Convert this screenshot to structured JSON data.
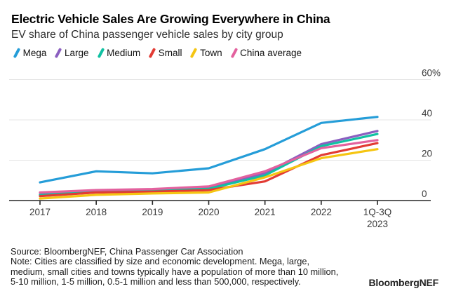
{
  "header": {
    "title": "Electric Vehicle Sales Are Growing Everywhere in China",
    "subtitle": "EV share of China passenger vehicle sales by city group"
  },
  "chart_data": {
    "type": "line",
    "unit": "%",
    "categories": [
      "2017",
      "2018",
      "2019",
      "2020",
      "2021",
      "2022",
      "1Q-3Q\n2023"
    ],
    "series": [
      {
        "name": "Mega",
        "color": "#259dd8",
        "values": [
          9,
          14.5,
          13.5,
          16,
          25.5,
          38.5,
          41.5
        ]
      },
      {
        "name": "Large",
        "color": "#8b5fc0",
        "values": [
          3,
          4.8,
          5.2,
          6.5,
          13.5,
          28,
          34.5
        ]
      },
      {
        "name": "Medium",
        "color": "#10c1a2",
        "values": [
          2.7,
          4.4,
          4.8,
          5.8,
          12.5,
          27,
          33
        ]
      },
      {
        "name": "Small",
        "color": "#e23b34",
        "values": [
          2.2,
          4.0,
          4.4,
          5.2,
          9.5,
          22.5,
          28.5
        ]
      },
      {
        "name": "Town",
        "color": "#f5c512",
        "values": [
          1,
          2.8,
          3.5,
          4.0,
          11.5,
          21,
          25.5
        ]
      },
      {
        "name": "China average",
        "color": "#e3619e",
        "values": [
          4,
          5.2,
          5.7,
          7.0,
          14.5,
          26,
          30
        ]
      }
    ],
    "ylim": [
      0,
      60
    ],
    "y_ticks": [
      {
        "value": 0,
        "label": "0"
      },
      {
        "value": 20,
        "label": "20"
      },
      {
        "value": 40,
        "label": "40"
      },
      {
        "value": 60,
        "label": "60%"
      }
    ],
    "grid": "horizontal",
    "legend_position": "top"
  },
  "footer": {
    "source": "Source: BloombergNEF, China Passenger Car Association",
    "note_lines": [
      "Note: Cities are classified by size and economic development. Mega, large,",
      "medium, small cities and towns typically have a population of more than 10 million,",
      "5-10 million, 1-5 million, 0.5-1 million and less than 500,000, respectively."
    ],
    "logo": "BloombergNEF"
  }
}
